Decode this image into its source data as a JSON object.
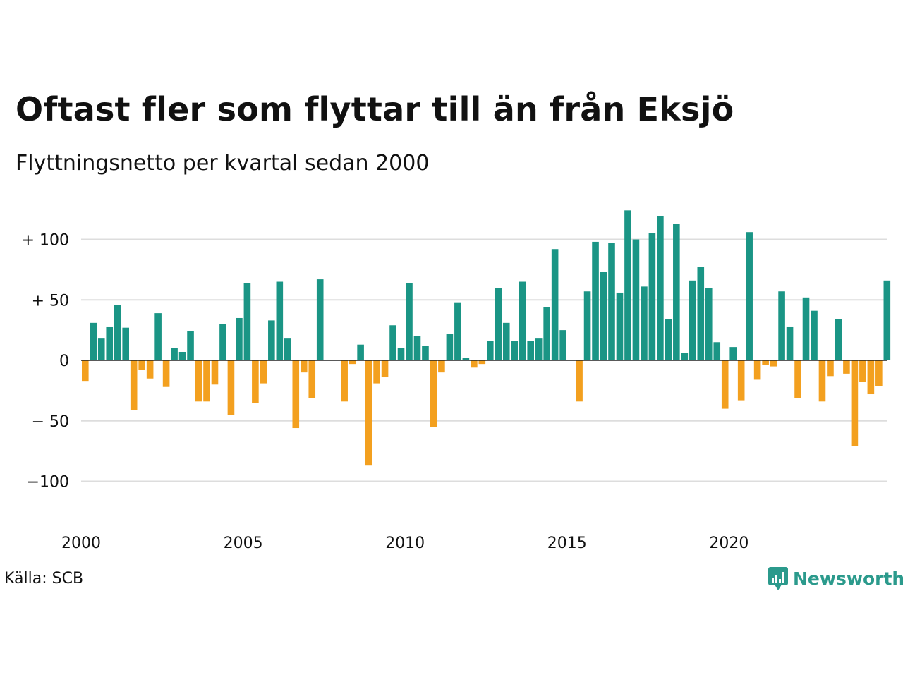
{
  "colors": {
    "positive": "#1a9585",
    "negative": "#f3a01f",
    "grid": "#dddddd",
    "zero_line": "#222222",
    "logo": "#2b9a8c"
  },
  "source_text": "Källa: SCB",
  "logo": {
    "text": "Newsworthy",
    "icon": "newsworthy-chat-chart-icon"
  },
  "chart_data": {
    "type": "bar",
    "title": "Oftast fler som flyttar till än från Eksjö",
    "subtitle": "Flyttningsnetto per kvartal sedan 2000",
    "xlabel": "",
    "ylabel": "",
    "x_start_year": 2000,
    "periods_per_year": 4,
    "x_ticks": [
      {
        "label": "2000",
        "year": 2000
      },
      {
        "label": "2005",
        "year": 2005
      },
      {
        "label": "2010",
        "year": 2010
      },
      {
        "label": "2015",
        "year": 2015
      },
      {
        "label": "2020",
        "year": 2020
      }
    ],
    "y_ticks": [
      {
        "label": "+ 100",
        "value": 100
      },
      {
        "label": "+  50",
        "value": 50
      },
      {
        "label": "0",
        "value": 0
      },
      {
        "label": "− 50",
        "value": -50
      },
      {
        "label": "−100",
        "value": -100
      }
    ],
    "ylim": [
      -130,
      130
    ],
    "grid": true,
    "legend": "none",
    "values": [
      -17,
      31,
      18,
      28,
      46,
      27,
      -41,
      -8,
      -15,
      39,
      -22,
      10,
      7,
      24,
      -34,
      -34,
      -20,
      30,
      -45,
      35,
      64,
      -35,
      -19,
      33,
      65,
      18,
      -56,
      -10,
      -31,
      67,
      0,
      0,
      -34,
      -3,
      13,
      -87,
      -19,
      -14,
      29,
      10,
      64,
      20,
      12,
      -55,
      -10,
      22,
      48,
      2,
      -6,
      -3,
      16,
      60,
      31,
      16,
      65,
      16,
      18,
      44,
      92,
      25,
      0,
      -34,
      57,
      98,
      73,
      97,
      56,
      124,
      100,
      61,
      105,
      119,
      34,
      113,
      6,
      66,
      77,
      60,
      15,
      -40,
      11,
      -33,
      106,
      -16,
      -4,
      -5,
      57,
      28,
      -31,
      52,
      41,
      -34,
      -13,
      34,
      -11,
      -71,
      -18,
      -28,
      -21,
      66
    ]
  }
}
